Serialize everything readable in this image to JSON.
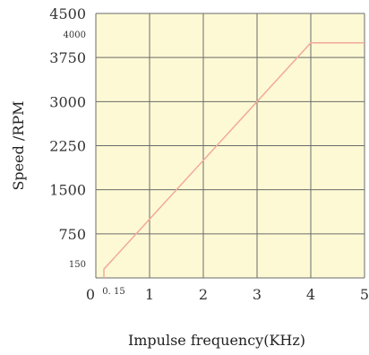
{
  "chart_data": {
    "type": "line",
    "xlabel": "Impulse frequency(KHz)",
    "ylabel": "Speed /RPM",
    "xlim": [
      0,
      5
    ],
    "ylim": [
      0,
      4500
    ],
    "grid": true,
    "x_ticks": [
      0,
      1,
      2,
      3,
      4,
      5
    ],
    "x_tick_labels": [
      "0",
      "1",
      "2",
      "3",
      "4",
      "5"
    ],
    "y_ticks": [
      750,
      1500,
      2250,
      3000,
      3750,
      4500
    ],
    "y_tick_labels": [
      "750",
      "1500",
      "2250",
      "3000",
      "3750",
      "4500"
    ],
    "annotations": [
      {
        "axis": "x",
        "value": 0.15,
        "label": "0. 15"
      },
      {
        "axis": "y",
        "value": 150,
        "label": "150"
      },
      {
        "axis": "y",
        "value": 4000,
        "label": "4000"
      }
    ],
    "series": [
      {
        "x": [
          0.15,
          0.15,
          4,
          5
        ],
        "y": [
          0,
          150,
          4000,
          4000
        ],
        "color": "#f2a99a"
      }
    ],
    "colors": {
      "plot_background": "#fcf9d4",
      "grid": "#6b6b6b",
      "line": "#f2a99a"
    }
  }
}
